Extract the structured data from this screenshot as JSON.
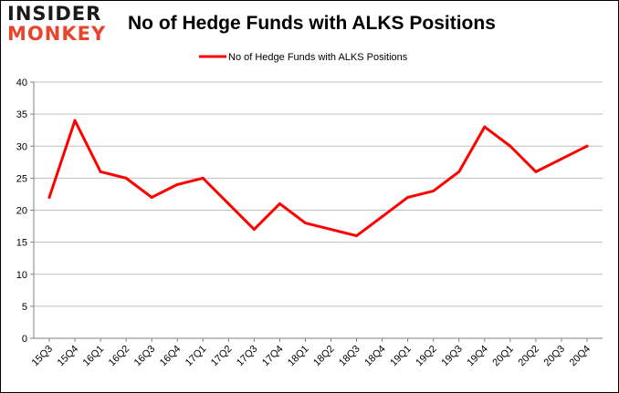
{
  "logo": {
    "line1": "INSIDER",
    "line2": "MONKEY"
  },
  "chart_data": {
    "type": "line",
    "title": "No of Hedge Funds with ALKS Positions",
    "xlabel": "",
    "ylabel": "",
    "categories": [
      "15Q3",
      "15Q4",
      "16Q1",
      "16Q2",
      "16Q3",
      "16Q4",
      "17Q1",
      "17Q2",
      "17Q3",
      "17Q4",
      "18Q1",
      "18Q2",
      "18Q3",
      "18Q4",
      "19Q1",
      "19Q2",
      "19Q3",
      "19Q4",
      "20Q1",
      "20Q2",
      "20Q3",
      "20Q4"
    ],
    "series": [
      {
        "name": "No of Hedge Funds with ALKS Positions",
        "values": [
          22,
          34,
          26,
          25,
          22,
          24,
          25,
          21,
          17,
          21,
          18,
          17,
          16,
          19,
          22,
          23,
          26,
          33,
          30,
          26,
          28,
          30
        ],
        "color": "#ff0000"
      }
    ],
    "ylim": [
      0,
      40
    ],
    "yticks": [
      0,
      5,
      10,
      15,
      20,
      25,
      30,
      35,
      40
    ],
    "grid": true,
    "legend_position": "top-center"
  }
}
